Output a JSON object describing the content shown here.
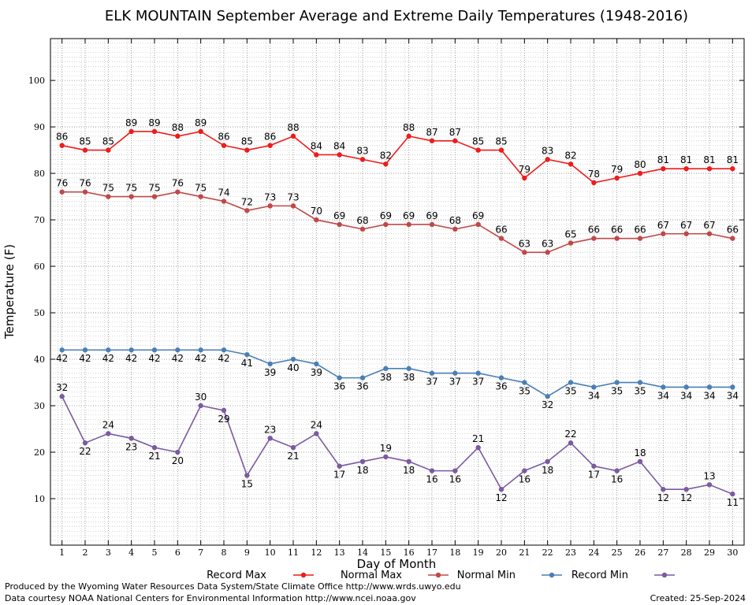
{
  "chart_data": {
    "type": "line",
    "title": "ELK MOUNTAIN September Average and Extreme Daily Temperatures (1948-2016)",
    "xlabel": "Day of Month",
    "ylabel": "Temperature (F)",
    "xlim": [
      0.5,
      30.5
    ],
    "ylim": [
      0,
      109
    ],
    "yticks": [
      10,
      20,
      30,
      40,
      50,
      60,
      70,
      80,
      90,
      100
    ],
    "grid": true,
    "legend_position": "bottom",
    "x": [
      1,
      2,
      3,
      4,
      5,
      6,
      7,
      8,
      9,
      10,
      11,
      12,
      13,
      14,
      15,
      16,
      17,
      18,
      19,
      20,
      21,
      22,
      23,
      24,
      25,
      26,
      27,
      28,
      29,
      30
    ],
    "series": [
      {
        "name": "Record Max",
        "color": "#ee1c1c",
        "label_position": "above",
        "values": [
          86,
          85,
          85,
          89,
          89,
          88,
          89,
          86,
          85,
          86,
          88,
          84,
          84,
          83,
          82,
          88,
          87,
          87,
          85,
          85,
          79,
          83,
          82,
          78,
          79,
          80,
          81,
          81,
          81,
          81
        ]
      },
      {
        "name": "Normal Max",
        "color": "#c04848",
        "label_position": "above",
        "values": [
          76,
          76,
          75,
          75,
          75,
          76,
          75,
          74,
          72,
          73,
          73,
          70,
          69,
          68,
          69,
          69,
          69,
          68,
          69,
          66,
          63,
          63,
          65,
          66,
          66,
          66,
          67,
          67,
          67,
          66
        ]
      },
      {
        "name": "Normal Min",
        "color": "#4a7fb5",
        "label_position": "below",
        "values": [
          42,
          42,
          42,
          42,
          42,
          42,
          42,
          42,
          41,
          39,
          40,
          39,
          36,
          36,
          38,
          38,
          37,
          37,
          37,
          36,
          35,
          32,
          35,
          34,
          35,
          35,
          34,
          34,
          34,
          34
        ]
      },
      {
        "name": "Record Min",
        "color": "#7b5aa0",
        "label_position": "mixed",
        "values": [
          32,
          22,
          24,
          23,
          21,
          20,
          30,
          29,
          15,
          23,
          21,
          24,
          17,
          18,
          19,
          18,
          16,
          16,
          21,
          12,
          16,
          18,
          22,
          17,
          16,
          18,
          12,
          12,
          13,
          11
        ]
      }
    ]
  },
  "footer": {
    "line1": "Produced by the Wyoming Water Resources Data System/State Climate Office http://www.wrds.uwyo.edu",
    "line2": "Data courtesy NOAA National Centers for Environmental Information http://www.ncei.noaa.gov",
    "created": "Created:  25-Sep-2024"
  }
}
